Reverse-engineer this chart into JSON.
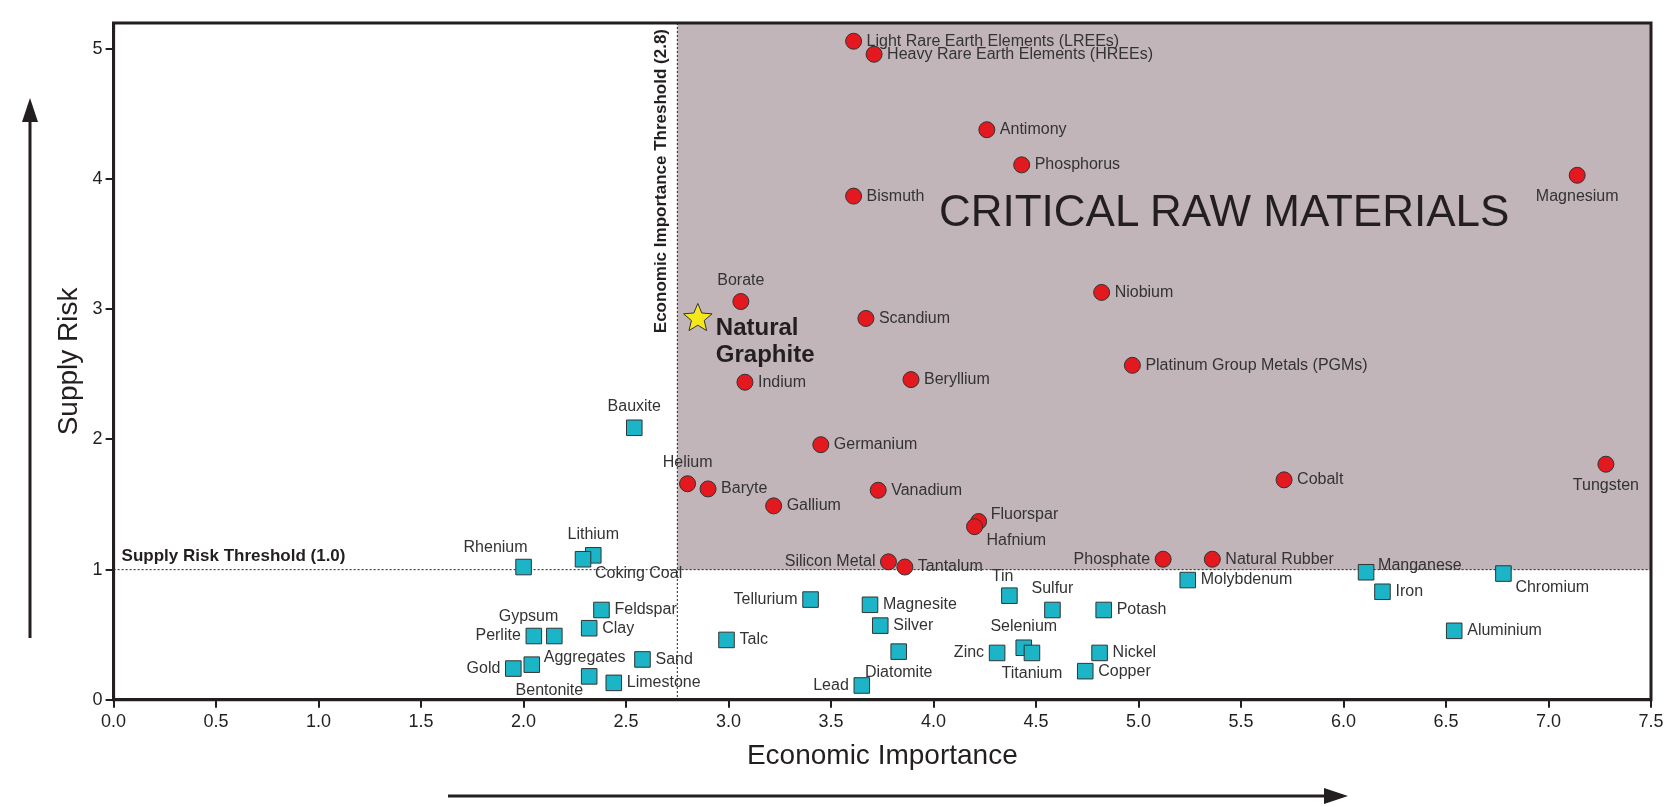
{
  "chart_data": {
    "type": "scatter",
    "xlabel": "Economic Importance",
    "ylabel": "Supply Risk",
    "xlim": [
      0,
      7.5
    ],
    "ylim": [
      0,
      5.2
    ],
    "xticks": [
      {
        "value": 0,
        "label": "0.0"
      },
      {
        "value": 0.5,
        "label": "0.5"
      },
      {
        "value": 1,
        "label": "1.0"
      },
      {
        "value": 1.5,
        "label": "1.5"
      },
      {
        "value": 2,
        "label": "2.0"
      },
      {
        "value": 2.5,
        "label": "2.5"
      },
      {
        "value": 3,
        "label": "3.0"
      },
      {
        "value": 3.5,
        "label": "3.5"
      },
      {
        "value": 4,
        "label": "4.0"
      },
      {
        "value": 4.5,
        "label": "4.5"
      },
      {
        "value": 5,
        "label": "5.0"
      },
      {
        "value": 5.5,
        "label": "5.5"
      },
      {
        "value": 6,
        "label": "6.0"
      },
      {
        "value": 6.5,
        "label": "6.5"
      },
      {
        "value": 7,
        "label": "7.0"
      },
      {
        "value": 7.5,
        "label": "7.5"
      }
    ],
    "yticks": [
      0,
      1,
      2,
      3,
      4,
      5
    ],
    "grid": false,
    "legend": false,
    "ref_lines": [
      {
        "axis": "y",
        "value": 1,
        "label": "Supply Risk Threshold (1.0)",
        "line_style": "dotted",
        "color": "#222222"
      },
      {
        "axis": "x",
        "value": 2.75,
        "label": "Economic Importance Threshold (2.8)",
        "line_style": "dotted",
        "color": "#222222"
      }
    ],
    "bands": [
      {
        "axis": "x",
        "from": 2.75,
        "to": 7.5,
        "label": "CRITICAL RAW MATERIALS",
        "color": "#c1b5b9"
      }
    ],
    "series": [
      {
        "type": "scatter",
        "marker": "circle",
        "color": "#e3191f",
        "x": [
          3.61,
          3.71,
          4.26,
          4.43,
          7.14,
          3.61,
          3.06,
          3.67,
          3.08,
          4.82,
          3.89,
          4.97,
          3.45,
          2.8,
          2.9,
          3.22,
          3.73,
          5.71,
          7.28,
          4.22,
          4.2,
          3.78,
          3.86,
          5.12,
          5.36
        ],
        "values": [
          5.06,
          4.96,
          4.38,
          4.11,
          4.03,
          3.87,
          3.06,
          2.93,
          2.44,
          3.13,
          2.46,
          2.57,
          1.96,
          1.66,
          1.62,
          1.49,
          1.61,
          1.69,
          1.81,
          1.37,
          1.33,
          1.06,
          1.02,
          1.08,
          1.08
        ],
        "value_labels": [
          "Light Rare Earth Elements (LREEs)",
          "Heavy Rare Earth Elements (HREEs)",
          "Antimony",
          "Phosphorus",
          "Magnesium",
          "Bismuth",
          "Borate",
          "Scandium",
          "Indium",
          "Niobium",
          "Beryllium",
          "Platinum Group Metals (PGMs)",
          "Germanium",
          "Helium",
          "Baryte",
          "Gallium",
          "Vanadium",
          "Cobalt",
          "Tungsten",
          "Fluorspar",
          "Hafnium",
          "Silicon Metal",
          "Tantalum",
          "Phosphate",
          "Natural Rubber"
        ]
      },
      {
        "type": "scatter",
        "marker": "square",
        "color": "#1bb5c7",
        "x": [
          2.54,
          2.34,
          2.29,
          2.0,
          2.38,
          2.15,
          2.32,
          2.05,
          2.04,
          2.58,
          1.95,
          2.32,
          2.44,
          3.4,
          2.99,
          3.65,
          3.69,
          3.74,
          3.83,
          4.37,
          4.58,
          4.83,
          5.24,
          6.11,
          6.19,
          6.78,
          6.54,
          4.31,
          4.44,
          4.48,
          4.81,
          4.74
        ],
        "values": [
          2.09,
          1.11,
          1.08,
          1.02,
          0.69,
          0.49,
          0.55,
          0.49,
          0.27,
          0.31,
          0.24,
          0.18,
          0.13,
          0.77,
          0.46,
          0.11,
          0.73,
          0.57,
          0.37,
          0.8,
          0.69,
          0.69,
          0.92,
          0.98,
          0.83,
          0.97,
          0.53,
          0.36,
          0.4,
          0.36,
          0.36,
          0.22
        ],
        "value_labels": [
          "Bauxite",
          "Lithium",
          "Coking Coal",
          "Rhenium",
          "Feldspar",
          "Gypsum",
          "Clay",
          "Perlite",
          "Aggregates",
          "Sand",
          "Gold",
          "Bentonite",
          "Limestone",
          "Tellurium",
          "Talc",
          "Lead",
          "Magnesite",
          "Silver",
          "Diatomite",
          "Tin",
          "Sulfur",
          "Potash",
          "Molybdenum",
          "Manganese",
          "Iron",
          "Chromium",
          "Aluminium",
          "Zinc",
          "Selenium",
          "Titanium",
          "Nickel",
          "Copper"
        ]
      },
      {
        "type": "scatter",
        "marker": "star",
        "color": "#f5e81a",
        "name": "Natural Graphite",
        "x": [
          2.85
        ],
        "values": [
          2.93
        ]
      }
    ]
  }
}
